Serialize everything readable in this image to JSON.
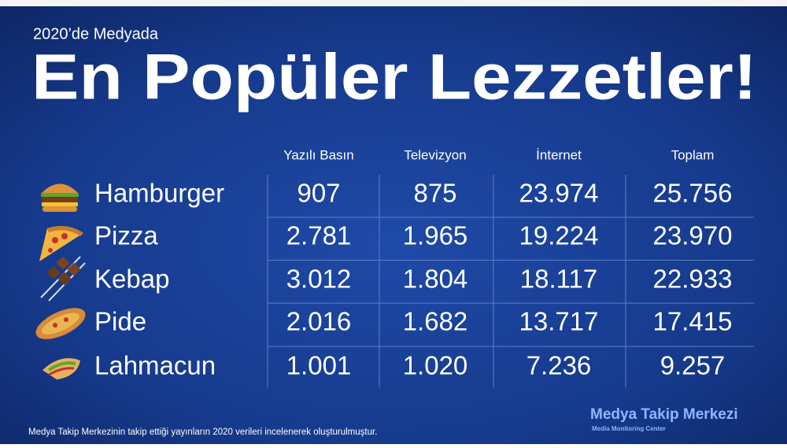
{
  "header": {
    "subtitle": "2020’de Medyada",
    "title": "En Popüler Lezzetler!"
  },
  "table": {
    "columns": [
      "Yazılı Basın",
      "Televizyon",
      "İnternet",
      "Toplam"
    ],
    "rows": [
      [
        "Hamburger",
        "907",
        "875",
        "23.974",
        "25.756"
      ],
      [
        "Pizza",
        "2.781",
        "1.965",
        "19.224",
        "23.970"
      ],
      [
        "Kebap",
        "3.012",
        "1.804",
        "18.117",
        "22.933"
      ],
      [
        "Pide",
        "2.016",
        "1.682",
        "13.717",
        "17.415"
      ],
      [
        "Lahmacun",
        "1.001",
        "1.020",
        "7.236",
        "9.257"
      ]
    ]
  },
  "footer": {
    "note": "Medya Takip Merkezinin takip ettiği yayınların 2020 verileri incelenerek oluşturulmuştur."
  },
  "logo": {
    "name": "Medya Takip Merkezi",
    "tagline": "Media Monitoring Center"
  }
}
